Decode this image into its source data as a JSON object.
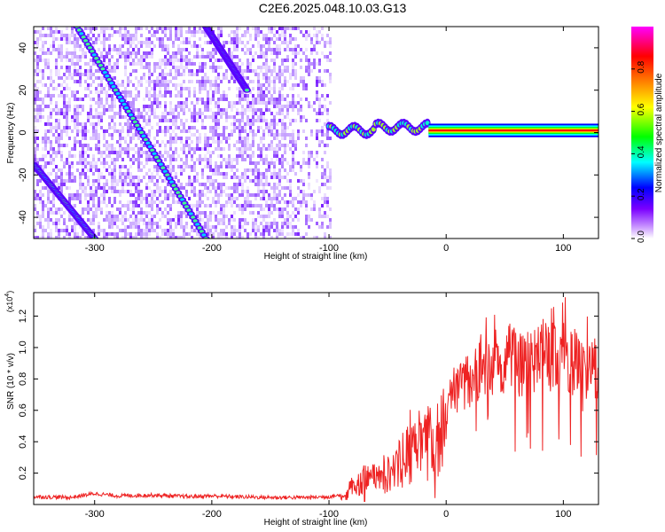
{
  "title": "C2E6.2025.048.10.03.G13",
  "chart_data": [
    {
      "type": "heatmap",
      "xlabel": "Height of straight line (km)",
      "ylabel": "Frequency (Hz)",
      "xlim": [
        -352,
        130
      ],
      "ylim": [
        -50,
        50
      ],
      "xticks": [
        -300,
        -200,
        -100,
        0,
        100
      ],
      "yticks": [
        -40,
        -20,
        0,
        20,
        40
      ],
      "colorbar": {
        "label": "Normalized spectral amplitude",
        "range": [
          0,
          1
        ],
        "ticks": [
          0.0,
          0.2,
          0.4,
          0.6,
          0.8
        ],
        "colors": [
          "#ffffff",
          "#c48cff",
          "#7a00ff",
          "#0000ff",
          "#00ffff",
          "#00ff00",
          "#ffff00",
          "#ff8000",
          "#ff0000",
          "#ff00ff"
        ]
      },
      "features": {
        "doppler_lines": [
          {
            "x_start": -352,
            "x_end": -300,
            "y_start": -15,
            "y_end": -50
          },
          {
            "x_start": -315,
            "x_end": -205,
            "y_start": 50,
            "y_end": -50
          },
          {
            "x_start": -205,
            "x_end": -170,
            "y_start": 50,
            "y_end": 20
          }
        ],
        "carrier_band": {
          "x_start": -100,
          "x_end": 130,
          "y": 1,
          "half_width": 2
        }
      }
    },
    {
      "type": "line",
      "xlabel": "Height of straight line (km)",
      "ylabel": "SNR (10 * v/v)",
      "y_multiplier": "(x10",
      "y_multiplier_exp": "4",
      "xlim": [
        -352,
        130
      ],
      "ylim": [
        0,
        13500
      ],
      "xticks": [
        -300,
        -200,
        -100,
        0,
        100
      ],
      "yticks": [
        2000,
        4000,
        6000,
        8000,
        10000,
        12000
      ],
      "yticklabels": [
        "0.2",
        "0.4",
        "0.6",
        "0.8",
        "1.0",
        "1.2"
      ],
      "color": "#ee2222",
      "series": [
        {
          "x": [
            -352,
            -320,
            -300,
            -280,
            -250,
            -220,
            -200,
            -180,
            -150,
            -120,
            -100,
            -90,
            -80,
            -70,
            -60,
            -50,
            -40,
            -30,
            -20,
            -10,
            0,
            10,
            20,
            30,
            40,
            50,
            60,
            70,
            80,
            90,
            100,
            110,
            120,
            130
          ],
          "values": [
            500,
            450,
            700,
            550,
            600,
            500,
            550,
            500,
            450,
            450,
            500,
            600,
            1800,
            2600,
            2600,
            3200,
            4200,
            5500,
            6200,
            6800,
            8200,
            9200,
            10000,
            11000,
            11800,
            11500,
            11200,
            11300,
            11500,
            11800,
            12000,
            11300,
            10800,
            10600
          ]
        }
      ]
    }
  ]
}
